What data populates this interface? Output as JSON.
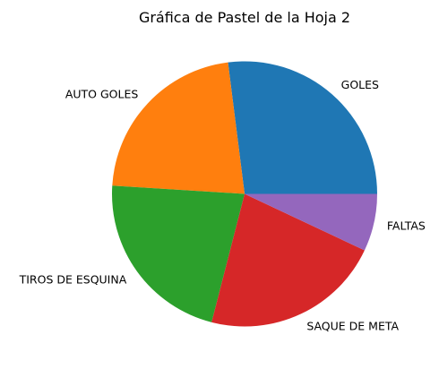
{
  "chart_data": {
    "type": "pie",
    "title": "Gráfica de Pastel de la Hoja 2",
    "start_angle_deg": 0,
    "direction": "counterclockwise",
    "slices": [
      {
        "label": "GOLES",
        "value": 27,
        "color": "#1f77b4"
      },
      {
        "label": "AUTO GOLES",
        "value": 22,
        "color": "#ff7f0e"
      },
      {
        "label": "TIROS DE ESQUINA",
        "value": 22,
        "color": "#2ca02c"
      },
      {
        "label": "SAQUE DE META",
        "value": 22,
        "color": "#d62728"
      },
      {
        "label": "FALTAS",
        "value": 7,
        "color": "#9467bd"
      }
    ]
  }
}
